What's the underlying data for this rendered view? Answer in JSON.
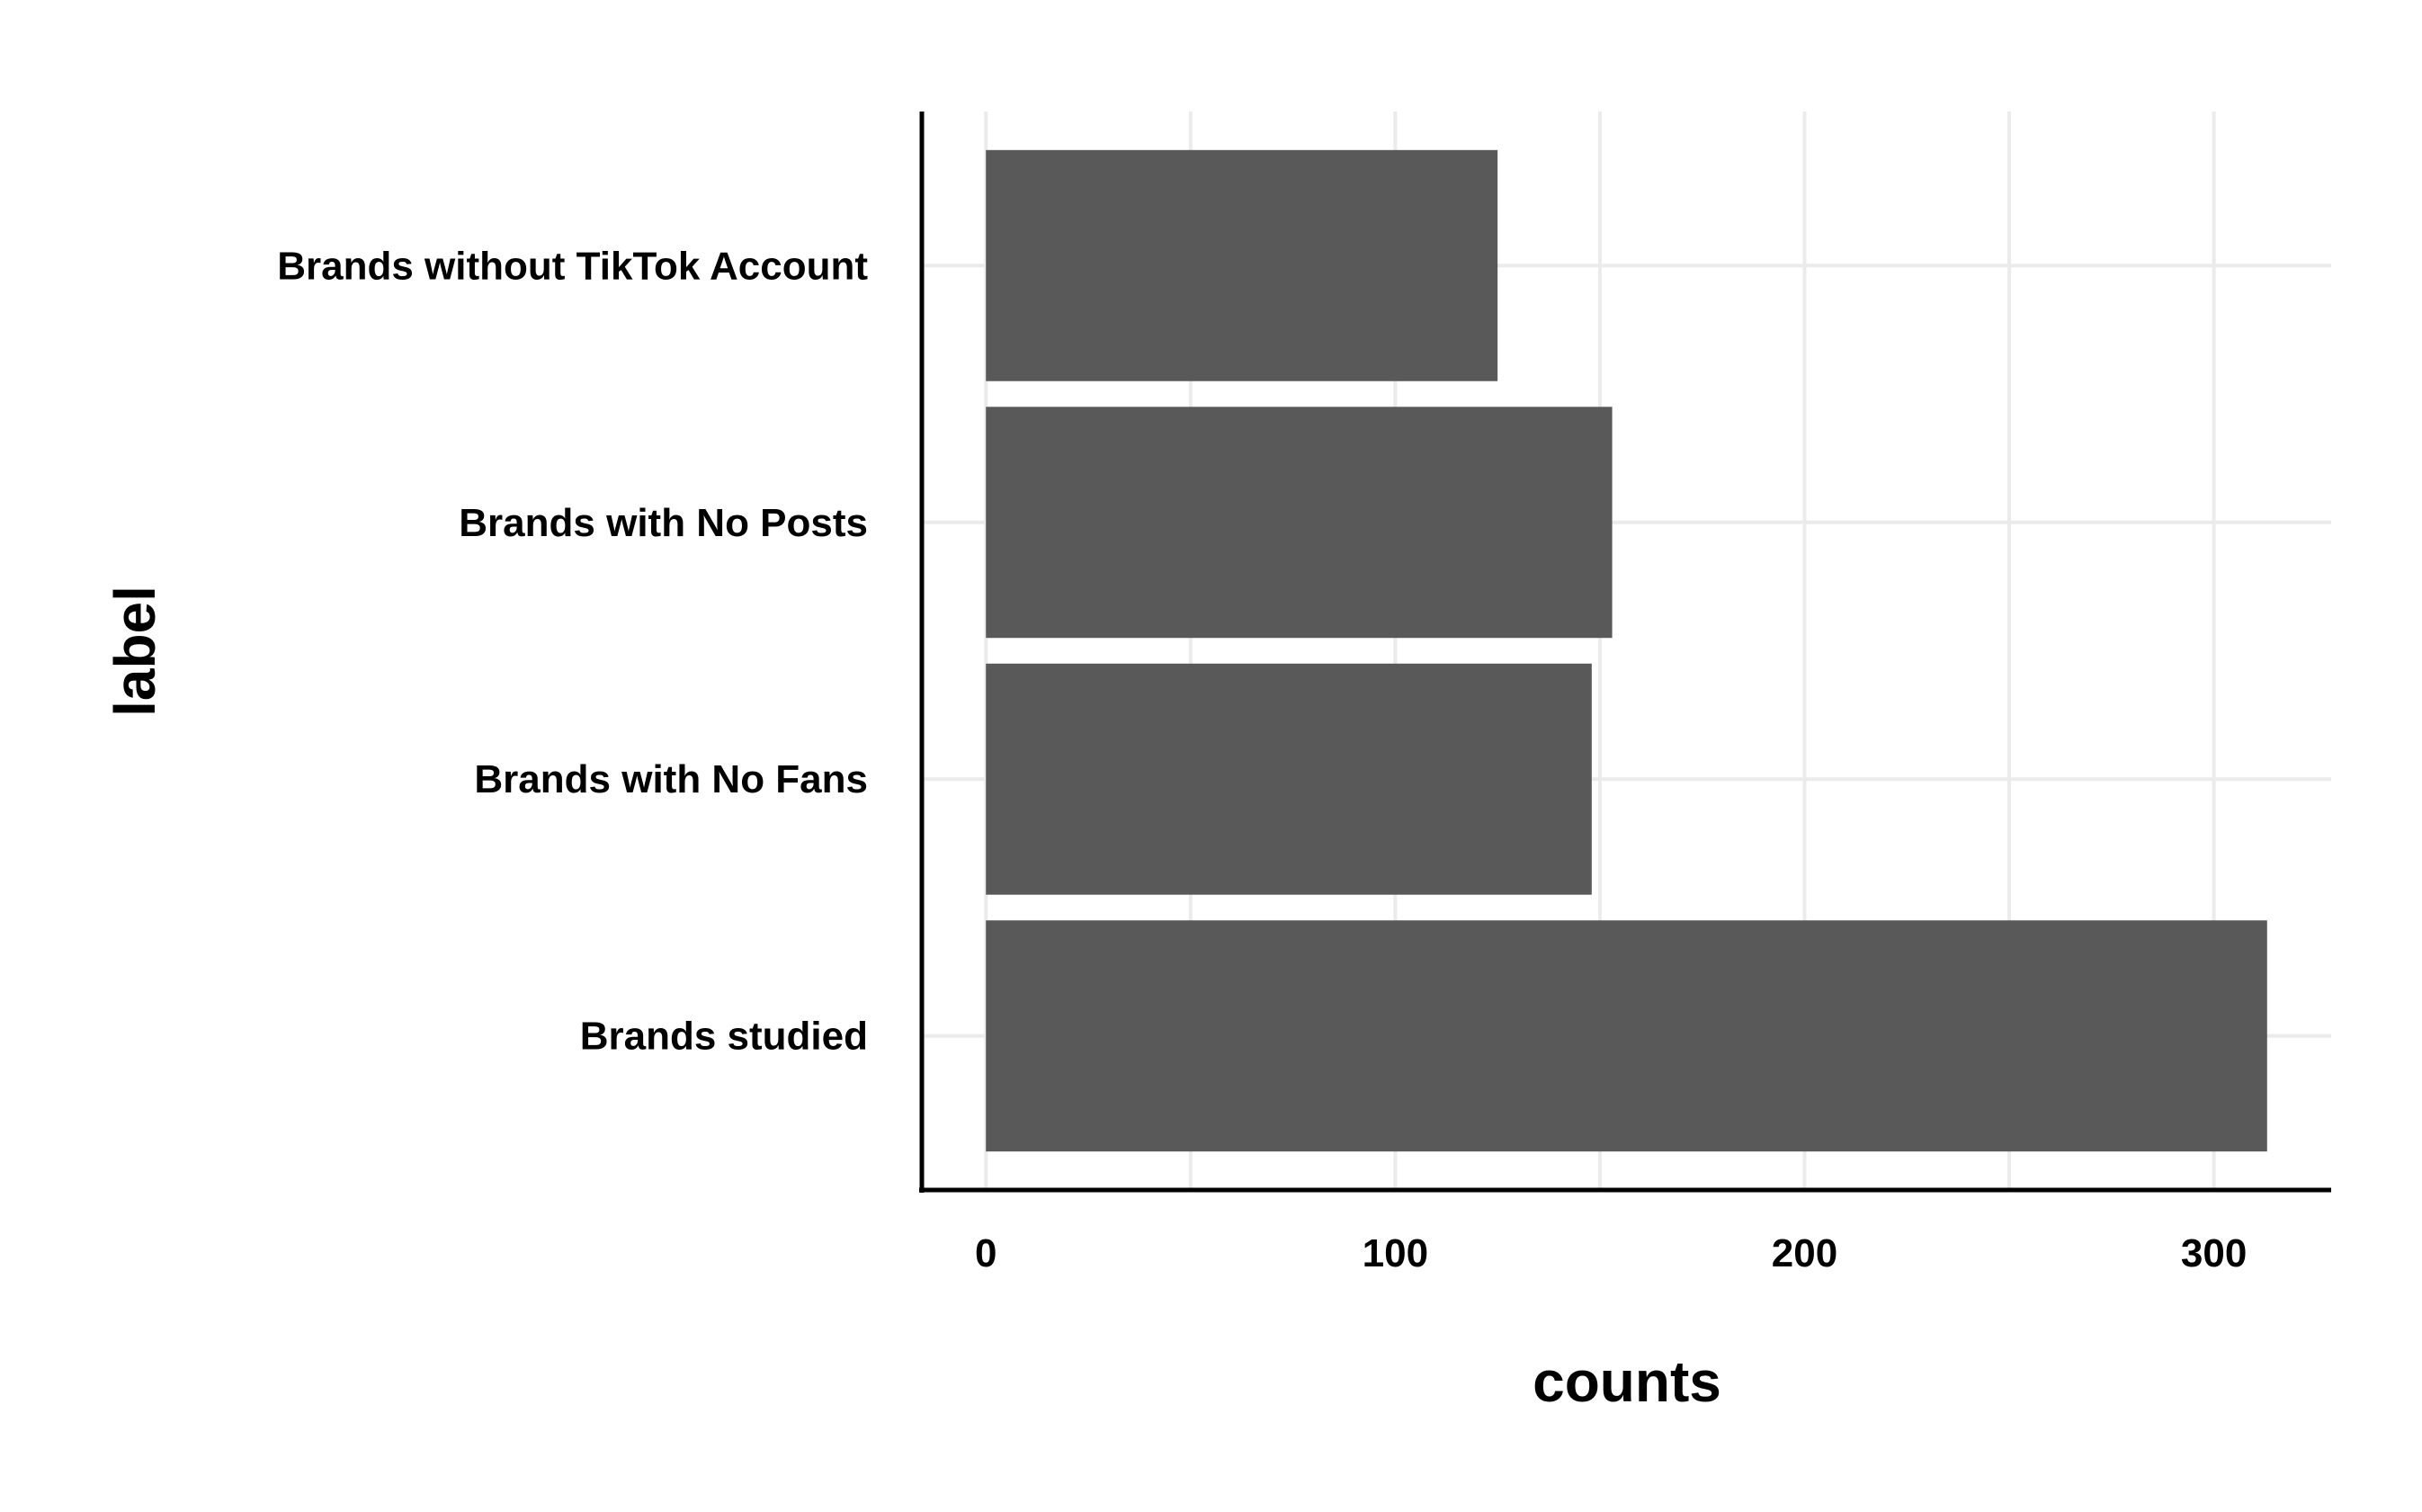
{
  "chart_data": {
    "type": "bar",
    "orientation": "horizontal",
    "categories": [
      "Brands studied",
      "Brands with No Fans",
      "Brands with No Posts",
      "Brands without TikTok Account"
    ],
    "values": [
      313,
      148,
      153,
      125
    ],
    "xlabel": "counts",
    "ylabel": "label",
    "xlim": [
      -15.65,
      328.65
    ],
    "x_ticks": [
      0,
      100,
      200,
      300
    ],
    "x_tick_labels": [
      "0",
      "100",
      "200",
      "300"
    ],
    "grid": true,
    "bar_color": "#595959",
    "grid_color": "#ebebeb"
  }
}
